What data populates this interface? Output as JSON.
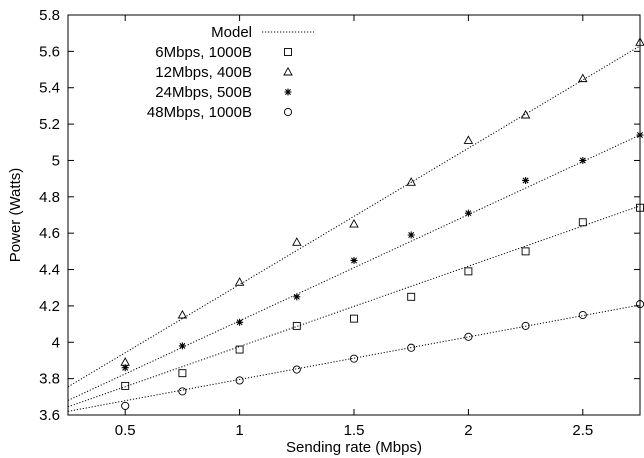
{
  "chart_data": {
    "type": "scatter",
    "title": "",
    "xlabel": "Sending rate (Mbps)",
    "ylabel": "Power (Watts)",
    "xlim": [
      0.25,
      2.75
    ],
    "ylim": [
      3.6,
      5.8
    ],
    "xticks": [
      0.5,
      1,
      1.5,
      2,
      2.5
    ],
    "xtick_labels": [
      "0.5",
      "1",
      "1.5",
      "2",
      "2.5"
    ],
    "yticks": [
      3.6,
      3.8,
      4.0,
      4.2,
      4.4,
      4.6,
      4.8,
      5.0,
      5.2,
      5.4,
      5.6,
      5.8
    ],
    "ytick_labels": [
      "3.6",
      "3.8",
      "4",
      "4.2",
      "4.4",
      "4.6",
      "4.8",
      "5",
      "5.2",
      "5.4",
      "5.6",
      "5.8"
    ],
    "grid": false,
    "legend_position": "top-left",
    "model": {
      "name": "Model",
      "style": "dotted",
      "lines": [
        {
          "x": [
            0.25,
            2.75
          ],
          "y": [
            3.645,
            4.75
          ]
        },
        {
          "x": [
            0.25,
            2.75
          ],
          "y": [
            3.755,
            5.63
          ]
        },
        {
          "x": [
            0.25,
            2.75
          ],
          "y": [
            3.68,
            5.14
          ]
        },
        {
          "x": [
            0.25,
            2.75
          ],
          "y": [
            3.62,
            4.205
          ]
        }
      ]
    },
    "series": [
      {
        "name": "6Mbps, 1000B",
        "marker": "square",
        "x": [
          0.5,
          0.75,
          1.0,
          1.25,
          1.5,
          1.75,
          2.0,
          2.25,
          2.5,
          2.75
        ],
        "y": [
          3.76,
          3.83,
          3.96,
          4.09,
          4.13,
          4.25,
          4.39,
          4.5,
          4.66,
          4.74
        ]
      },
      {
        "name": "12Mbps, 400B",
        "marker": "triangle",
        "x": [
          0.5,
          0.75,
          1.0,
          1.25,
          1.5,
          1.75,
          2.0,
          2.25,
          2.5,
          2.75
        ],
        "y": [
          3.89,
          4.15,
          4.33,
          4.55,
          4.65,
          4.88,
          5.11,
          5.25,
          5.45,
          5.65
        ]
      },
      {
        "name": "24Mbps, 500B",
        "marker": "star",
        "x": [
          0.5,
          0.75,
          1.0,
          1.25,
          1.5,
          1.75,
          2.0,
          2.25,
          2.5,
          2.75
        ],
        "y": [
          3.86,
          3.98,
          4.11,
          4.25,
          4.45,
          4.59,
          4.71,
          4.89,
          5.0,
          5.14
        ]
      },
      {
        "name": "48Mbps, 1000B",
        "marker": "circle",
        "x": [
          0.5,
          0.75,
          1.0,
          1.25,
          1.5,
          1.75,
          2.0,
          2.25,
          2.5,
          2.75
        ],
        "y": [
          3.65,
          3.73,
          3.79,
          3.85,
          3.91,
          3.97,
          4.03,
          4.09,
          4.15,
          4.21
        ]
      }
    ]
  }
}
